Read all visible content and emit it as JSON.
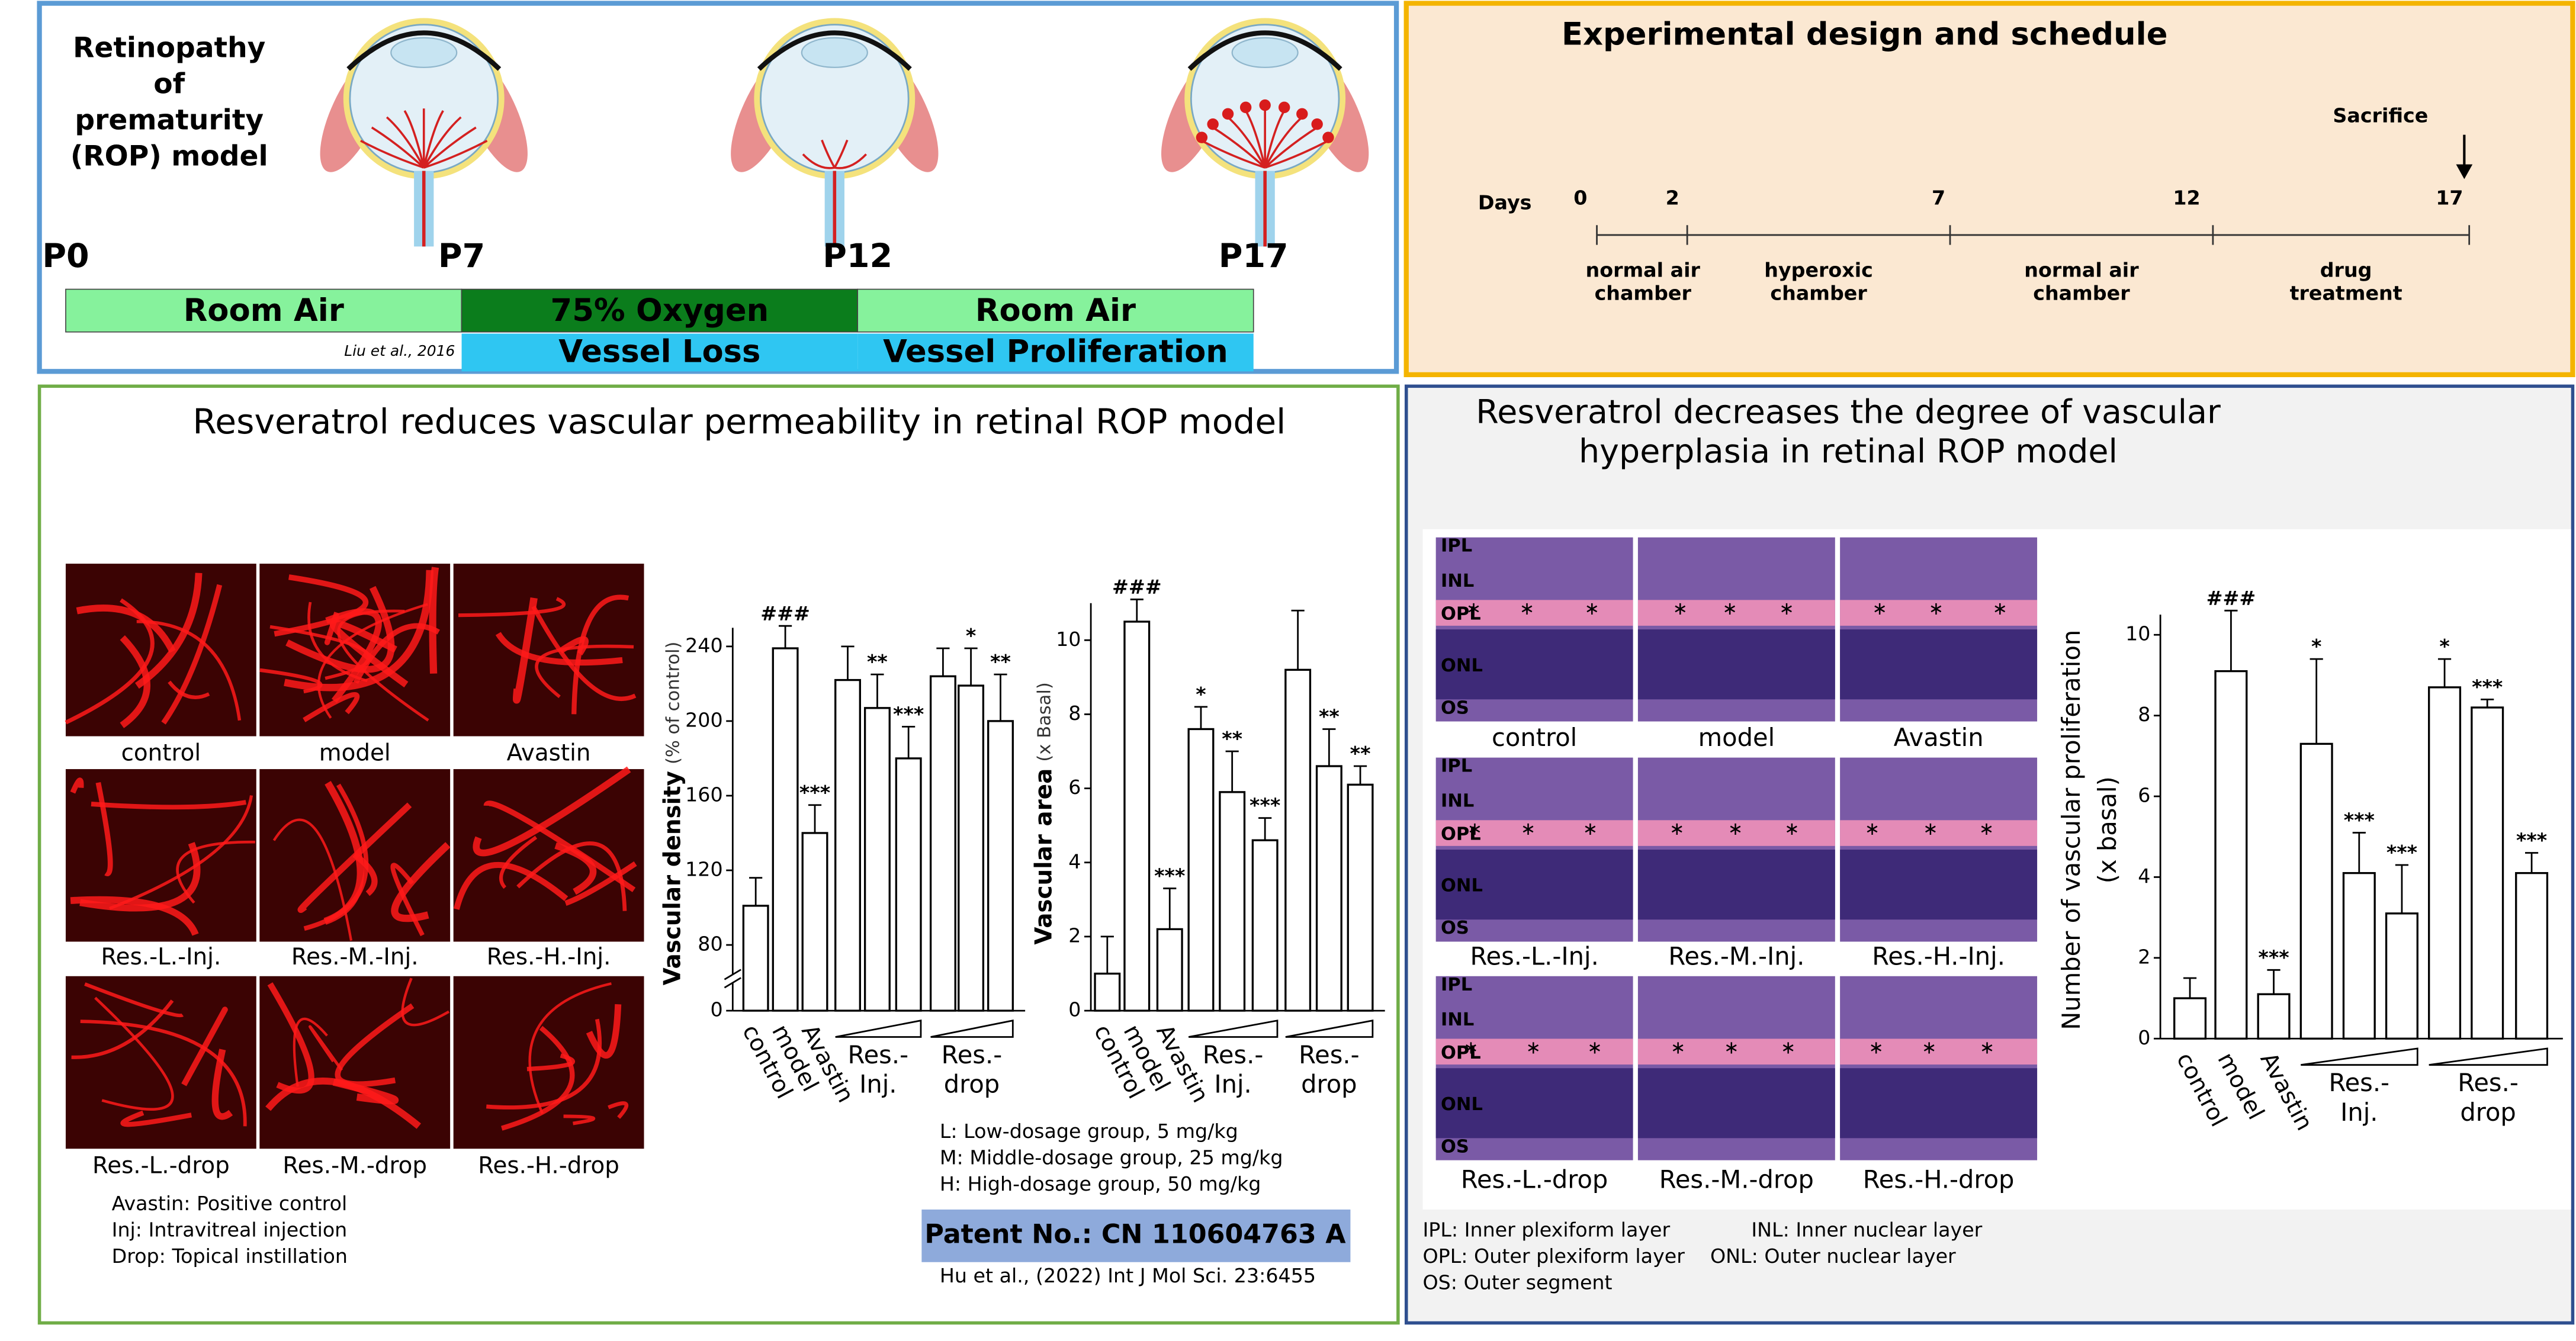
{
  "rop_model": {
    "title_lines": [
      "Retinopathy",
      "of",
      "prematurity",
      "(ROP) model"
    ],
    "timepoints": [
      "P0",
      "P7",
      "P12",
      "P17"
    ],
    "conditions": [
      "Room Air",
      "75% Oxygen",
      "Room Air"
    ],
    "outcomes": [
      "Vessel Loss",
      "Vessel Proliferation"
    ],
    "citation": "Liu et al., 2016"
  },
  "schedule": {
    "title": "Experimental design and schedule",
    "marker": "Sacrifice",
    "days_label": "Days",
    "days": [
      0,
      2,
      7,
      12,
      17
    ],
    "stages": [
      [
        "normal air",
        "chamber"
      ],
      [
        "hyperoxic",
        "chamber"
      ],
      [
        "normal air",
        "chamber"
      ],
      [
        "drug",
        "treatment"
      ]
    ]
  },
  "permeability": {
    "title": "Resveratrol reduces vascular permeability in retinal ROP model",
    "image_labels": [
      "control",
      "model",
      "Avastin",
      "Res.-L.-Inj.",
      "Res.-M.-Inj.",
      "Res.-H.-Inj.",
      "Res.-L.-drop",
      "Res.-M.-drop",
      "Res.-H.-drop"
    ],
    "notes": [
      "Avastin: Positive control",
      "Inj: Intravitreal injection",
      "Drop: Topical instillation"
    ],
    "doses": [
      "L: Low-dosage group, 5 mg/kg",
      "M: Middle-dosage group, 25 mg/kg",
      "H: High-dosage group, 50 mg/kg"
    ],
    "patent": "Patent No.: CN 110604763 A",
    "citation": "Hu et al., (2022) Int J Mol Sci. 23:6455"
  },
  "hyperplasia": {
    "title_lines": [
      "Resveratrol decreases the degree of vascular",
      "hyperplasia in retinal ROP model"
    ],
    "layers": [
      "IPL",
      "INL",
      "OPL",
      "ONL",
      "OS"
    ],
    "image_labels": [
      "control",
      "model",
      "Avastin",
      "Res.-L.-Inj.",
      "Res.-M.-Inj.",
      "Res.-H.-Inj.",
      "Res.-L.-drop",
      "Res.-M.-drop",
      "Res.-H.-drop"
    ],
    "notes": [
      "IPL: Inner plexiform layer",
      "INL: Inner nuclear layer",
      "OPL: Outer plexiform layer",
      "ONL: Outer nuclear layer",
      "OS: Outer segment"
    ]
  },
  "chart_data": [
    {
      "type": "bar",
      "ylabel": "Vascular density",
      "ylabel_unit": "(% of control)",
      "categories": [
        "control",
        "model",
        "Avastin",
        null,
        null,
        null,
        null,
        null,
        null
      ],
      "groups": [
        [
          "Res.-",
          "Inj."
        ],
        [
          "Res.-",
          "drop"
        ]
      ],
      "values": [
        101,
        239,
        140,
        222,
        207,
        180,
        224,
        219,
        200
      ],
      "errors": [
        15,
        12,
        15,
        18,
        18,
        17,
        15,
        20,
        25
      ],
      "significance": [
        null,
        "###",
        "***",
        null,
        "**",
        "***",
        null,
        "*",
        "**"
      ],
      "color": "#ffffff",
      "ylim": [
        0,
        250
      ],
      "axis_break": [
        0,
        80
      ],
      "yticks": [
        0,
        80,
        120,
        160,
        200,
        240
      ]
    },
    {
      "type": "bar",
      "ylabel": "Vascular area",
      "ylabel_unit": "(x Basal)",
      "categories": [
        "control",
        "model",
        "Avastin",
        null,
        null,
        null,
        null,
        null,
        null
      ],
      "groups": [
        [
          "Res.-",
          "Inj."
        ],
        [
          "Res.-",
          "drop"
        ]
      ],
      "values": [
        1.0,
        10.5,
        2.2,
        7.6,
        5.9,
        4.6,
        9.2,
        6.6,
        6.1
      ],
      "errors": [
        1.0,
        0.6,
        1.1,
        0.6,
        1.1,
        0.6,
        1.6,
        1.0,
        0.5
      ],
      "significance": [
        null,
        "###",
        "***",
        "*",
        "**",
        "***",
        null,
        "**",
        "**"
      ],
      "color": "#ffffff",
      "ylim": [
        0,
        11
      ],
      "yticks": [
        0,
        2,
        4,
        6,
        8,
        10
      ]
    },
    {
      "type": "bar",
      "ylabel_lines": [
        "Number of vascular proliferation",
        "(x basal)"
      ],
      "categories": [
        "control",
        "model",
        "Avastin",
        null,
        null,
        null,
        null,
        null,
        null
      ],
      "groups": [
        [
          "Res.-",
          "Inj."
        ],
        [
          "Res.-",
          "drop"
        ]
      ],
      "values": [
        1.0,
        9.1,
        1.1,
        7.3,
        4.1,
        3.1,
        8.7,
        8.2,
        4.1
      ],
      "errors": [
        0.5,
        1.5,
        0.6,
        2.1,
        1.0,
        1.2,
        0.7,
        0.2,
        0.5
      ],
      "significance": [
        null,
        "###",
        "***",
        "*",
        "***",
        "***",
        "*",
        "***",
        "***"
      ],
      "color": "#ffffff",
      "ylim": [
        0,
        10.5
      ],
      "yticks": [
        0,
        2,
        4,
        6,
        8,
        10
      ]
    }
  ]
}
